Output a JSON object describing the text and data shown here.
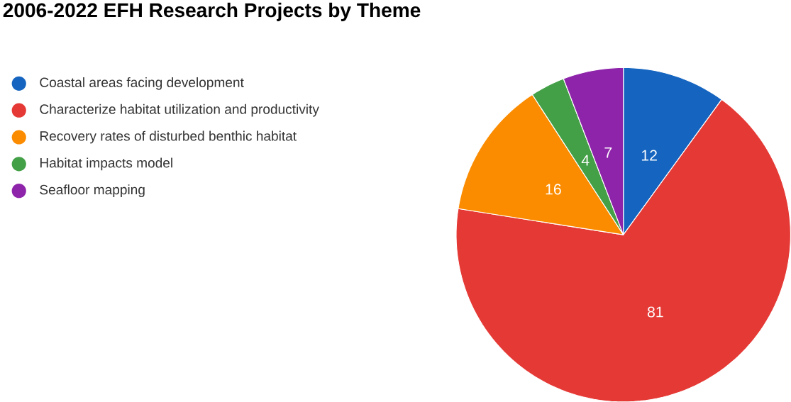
{
  "chart_data": {
    "type": "pie",
    "title": "2006-2022 EFH Research Projects by Theme",
    "categories": [
      "Coastal areas facing development",
      "Characterize habitat utilization and productivity",
      "Recovery rates of disturbed benthic habitat",
      "Habitat impacts model",
      "Seafloor mapping"
    ],
    "values": [
      12,
      81,
      16,
      4,
      7
    ],
    "colors": [
      "#1565c0",
      "#e53935",
      "#fb8c00",
      "#43a047",
      "#8e24aa"
    ],
    "data_labels": true,
    "legend": "top left"
  }
}
